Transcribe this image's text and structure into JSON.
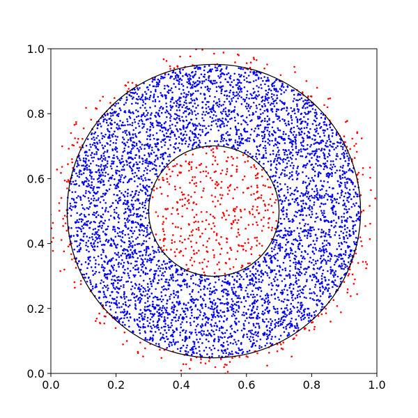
{
  "chart_data": {
    "type": "scatter",
    "title": "",
    "xlabel": "",
    "ylabel": "",
    "xlim": [
      0.0,
      1.0
    ],
    "ylim": [
      0.0,
      1.0
    ],
    "aspect": "equal",
    "grid": false,
    "legend": "none",
    "x_ticks": [
      "0.0",
      "0.2",
      "0.4",
      "0.6",
      "0.8",
      "1.0"
    ],
    "y_ticks": [
      "0.0",
      "0.2",
      "0.4",
      "0.6",
      "0.8",
      "1.0"
    ],
    "x_tick_values": [
      0.0,
      0.2,
      0.4,
      0.6,
      0.8,
      1.0
    ],
    "y_tick_values": [
      0.0,
      0.2,
      0.4,
      0.6,
      0.8,
      1.0
    ],
    "circles": [
      {
        "center": [
          0.5,
          0.5
        ],
        "radius": 0.45
      },
      {
        "center": [
          0.5,
          0.5
        ],
        "radius": 0.2
      }
    ],
    "regions": [
      {
        "color": "#0000ff",
        "description": "points inside the annulus between the circles",
        "r_min": 0.2,
        "r_max": 0.45,
        "approx_count": 5200
      },
      {
        "color": "#ff0000",
        "description": "points inside the inner circle",
        "r_min": 0.0,
        "r_max": 0.2,
        "approx_count": 420
      },
      {
        "color": "#ff0000",
        "description": "points just outside the outer circle",
        "r_min": 0.45,
        "r_max": 0.5,
        "approx_count": 320
      }
    ]
  }
}
